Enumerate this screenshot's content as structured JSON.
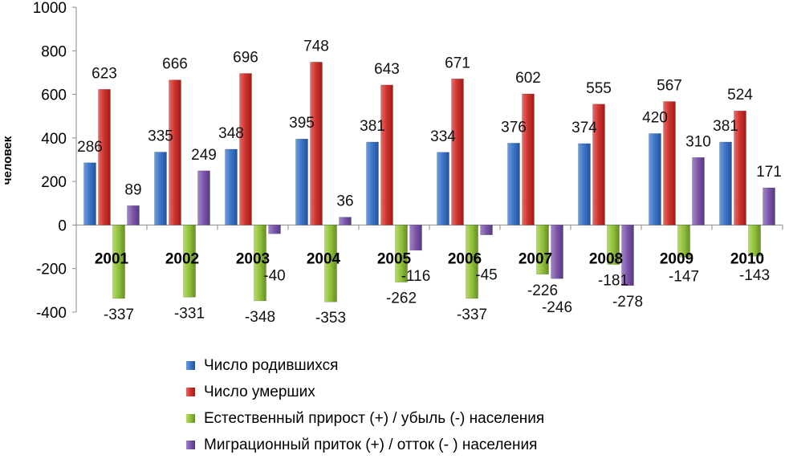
{
  "chart_data": {
    "type": "bar",
    "title": "",
    "xlabel": "",
    "ylabel": "человек",
    "ylim": [
      -400,
      1000
    ],
    "yticks": [
      -400,
      -200,
      0,
      200,
      400,
      600,
      800,
      1000
    ],
    "grid": "vertical category separators",
    "legend_position": "bottom",
    "categories": [
      "2001",
      "2002",
      "2003",
      "2004",
      "2005",
      "2006",
      "2007",
      "2008",
      "2009",
      "2010"
    ],
    "series": [
      {
        "name": "Число родившихся",
        "color": "#3b74c6",
        "values": [
          286,
          335,
          348,
          395,
          381,
          334,
          376,
          374,
          420,
          381
        ]
      },
      {
        "name": "Число умерших",
        "color": "#d0302c",
        "values": [
          623,
          666,
          696,
          748,
          643,
          671,
          602,
          555,
          567,
          524
        ]
      },
      {
        "name": "Естественный прирост (+) / убыль (-) населения",
        "color": "#8fbf3a",
        "values": [
          -337,
          -331,
          -348,
          -353,
          -262,
          -337,
          -226,
          -181,
          -147,
          -143
        ]
      },
      {
        "name": "Миграционный приток  (+)  / отток (- ) населения",
        "color": "#7a55a8",
        "values": [
          89,
          249,
          -40,
          36,
          -116,
          -45,
          -246,
          -278,
          310,
          171
        ]
      }
    ]
  }
}
